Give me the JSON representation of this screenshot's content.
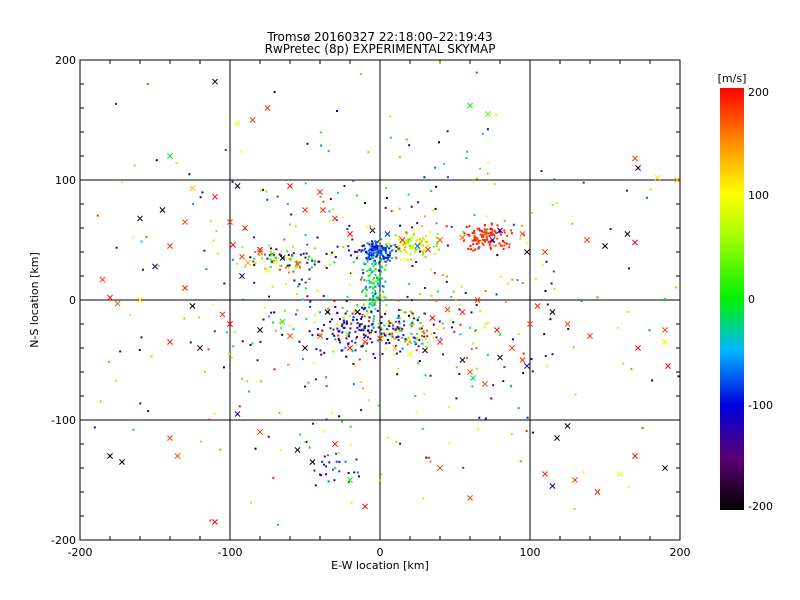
{
  "chart_data": {
    "type": "scatter",
    "title": "Tromsø 20160327 22:18:00–22:19:43",
    "subtitle": "RwPretec (8p) EXPERIMENTAL SKYMAP",
    "xlabel": "E-W location [km]",
    "ylabel": "N-S location [km]",
    "xlim": [
      -200,
      200
    ],
    "ylim": [
      -200,
      200
    ],
    "x_ticks": [
      "-200",
      "-100",
      "0",
      "100",
      "200"
    ],
    "y_ticks": [
      "200",
      "100",
      "0",
      "-100",
      "-200"
    ],
    "grid": true,
    "colorbar": {
      "label": "[m/s]",
      "range": [
        -200,
        200
      ],
      "ticks": [
        "200",
        "100",
        "0",
        "-100",
        "-200"
      ],
      "colormap": "black-purple-blue-cyan-green-yellow-red"
    },
    "series": [
      {
        "marker": "x",
        "points": [
          [
            -110,
            182
          ],
          [
            -95,
            147
          ],
          [
            -85,
            150
          ],
          [
            -75,
            160
          ],
          [
            -95,
            95
          ],
          [
            -125,
            93
          ],
          [
            -110,
            86
          ],
          [
            -145,
            75
          ],
          [
            -160,
            68
          ],
          [
            -130,
            65
          ],
          [
            -140,
            45
          ],
          [
            -98,
            46
          ],
          [
            -92,
            36
          ],
          [
            -88,
            31
          ],
          [
            -80,
            42
          ],
          [
            -72,
            38
          ],
          [
            -65,
            35
          ],
          [
            -55,
            30
          ],
          [
            -60,
            95
          ],
          [
            -40,
            90
          ],
          [
            -50,
            75
          ],
          [
            -38,
            75
          ],
          [
            -30,
            68
          ],
          [
            -20,
            55
          ],
          [
            -5,
            58
          ],
          [
            5,
            55
          ],
          [
            15,
            50
          ],
          [
            25,
            45
          ],
          [
            32,
            42
          ],
          [
            40,
            50
          ],
          [
            55,
            52
          ],
          [
            70,
            55
          ],
          [
            75,
            50
          ],
          [
            80,
            58
          ],
          [
            95,
            55
          ],
          [
            98,
            40
          ],
          [
            110,
            40
          ],
          [
            138,
            50
          ],
          [
            150,
            45
          ],
          [
            165,
            55
          ],
          [
            170,
            48
          ],
          [
            60,
            162
          ],
          [
            72,
            155
          ],
          [
            170,
            118
          ],
          [
            172,
            110
          ],
          [
            185,
            102
          ],
          [
            198,
            100
          ],
          [
            -140,
            120
          ],
          [
            -100,
            65
          ],
          [
            -90,
            60
          ],
          [
            -120,
            -40
          ],
          [
            -100,
            -20
          ],
          [
            -80,
            -25
          ],
          [
            -60,
            -30
          ],
          [
            -40,
            -30
          ],
          [
            -20,
            -40
          ],
          [
            -10,
            -35
          ],
          [
            0,
            -32
          ],
          [
            10,
            -40
          ],
          [
            20,
            -45
          ],
          [
            30,
            -42
          ],
          [
            40,
            -35
          ],
          [
            55,
            -50
          ],
          [
            60,
            -60
          ],
          [
            62,
            -65
          ],
          [
            70,
            -70
          ],
          [
            80,
            -48
          ],
          [
            95,
            -50
          ],
          [
            100,
            -20
          ],
          [
            105,
            -5
          ],
          [
            115,
            -10
          ],
          [
            125,
            -20
          ],
          [
            140,
            -30
          ],
          [
            172,
            -40
          ],
          [
            190,
            -25
          ],
          [
            190,
            -35
          ],
          [
            192,
            -55
          ],
          [
            -185,
            17
          ],
          [
            -180,
            2
          ],
          [
            -175,
            -3
          ],
          [
            -180,
            -130
          ],
          [
            -172,
            -135
          ],
          [
            -140,
            -115
          ],
          [
            -135,
            -130
          ],
          [
            -110,
            -185
          ],
          [
            -80,
            -110
          ],
          [
            -95,
            -95
          ],
          [
            -30,
            -120
          ],
          [
            -20,
            -150
          ],
          [
            -45,
            -135
          ],
          [
            -55,
            -125
          ],
          [
            -10,
            -172
          ],
          [
            40,
            -140
          ],
          [
            60,
            -165
          ],
          [
            110,
            -145
          ],
          [
            115,
            -155
          ],
          [
            118,
            -115
          ],
          [
            125,
            -105
          ],
          [
            130,
            -150
          ],
          [
            145,
            -160
          ],
          [
            160,
            -145
          ],
          [
            170,
            -130
          ],
          [
            190,
            -140
          ],
          [
            -140,
            -35
          ],
          [
            -130,
            10
          ],
          [
            -160,
            0
          ],
          [
            -125,
            -5
          ],
          [
            -105,
            -12
          ],
          [
            -65,
            -18
          ],
          [
            -50,
            -40
          ],
          [
            -35,
            -10
          ],
          [
            -15,
            -10
          ],
          [
            35,
            -15
          ],
          [
            45,
            -8
          ],
          [
            55,
            -10
          ],
          [
            65,
            0
          ],
          [
            78,
            -25
          ],
          [
            88,
            -40
          ],
          [
            98,
            -55
          ],
          [
            -92,
            20
          ],
          [
            -80,
            40
          ],
          [
            -75,
            25
          ],
          [
            -150,
            28
          ]
        ]
      },
      {
        "marker": "dot",
        "clusters": [
          {
            "center": [
              -2,
              40
            ],
            "spread": [
              10,
              8
            ],
            "count": 140,
            "color_range": [
              -120,
              -60
            ]
          },
          {
            "center": [
              -3,
              10
            ],
            "spread": [
              7,
              20
            ],
            "count": 110,
            "color_range": [
              -80,
              40
            ]
          },
          {
            "center": [
              20,
              45
            ],
            "spread": [
              14,
              9
            ],
            "count": 80,
            "color_range": [
              20,
              140
            ]
          },
          {
            "center": [
              72,
              52
            ],
            "spread": [
              13,
              9
            ],
            "count": 110,
            "color_range": [
              170,
              200
            ]
          },
          {
            "center": [
              -65,
              35
            ],
            "spread": [
              26,
              8
            ],
            "count": 70,
            "color_range": [
              -200,
              200
            ]
          },
          {
            "center": [
              10,
              -25
            ],
            "spread": [
              30,
              14
            ],
            "count": 170,
            "color_range": [
              -200,
              200
            ]
          },
          {
            "center": [
              -15,
              -25
            ],
            "spread": [
              22,
              14
            ],
            "count": 80,
            "color_range": [
              -180,
              -80
            ]
          },
          {
            "center": [
              -30,
              -140
            ],
            "spread": [
              15,
              15
            ],
            "count": 25,
            "color_range": [
              -140,
              -60
            ]
          },
          {
            "center": [
              0,
              0
            ],
            "spread": [
              110,
              110
            ],
            "count": 360,
            "color_range": [
              -200,
              200
            ]
          },
          {
            "center": [
              0,
              0
            ],
            "spread": [
              190,
              190
            ],
            "count": 160,
            "color_range": [
              -200,
              200
            ]
          }
        ]
      }
    ]
  }
}
